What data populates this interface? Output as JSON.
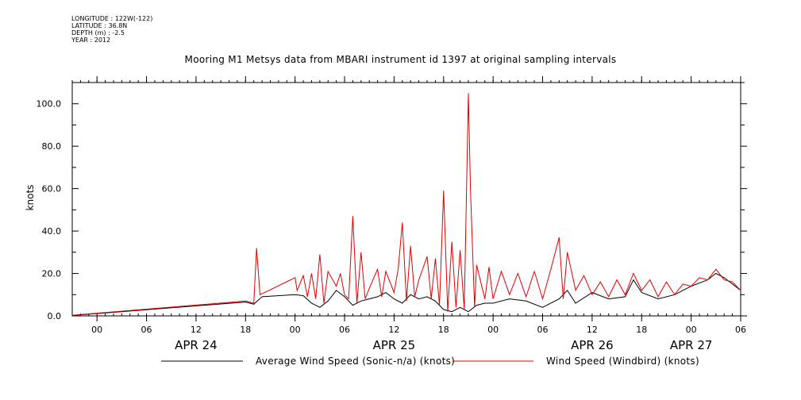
{
  "header": {
    "longitude": "LONGITUDE : 122W(-122)",
    "latitude": "LATITUDE : 36.8N",
    "depth": "DEPTH (m) : -2.5",
    "year": "YEAR : 2012"
  },
  "chart_data": {
    "type": "line",
    "title": "Mooring M1 Metsys data from MBARI instrument id 1397 at original sampling intervals",
    "ylabel": "knots",
    "ylim": [
      0,
      110
    ],
    "xlim": [
      "2012-04-23 21:00",
      "2012-04-27 06:00"
    ],
    "y_ticks": [
      0,
      20,
      40,
      60,
      80,
      100
    ],
    "y_tick_labels": [
      "0.0",
      "20.0",
      "40.0",
      "60.0",
      "80.0",
      "100.0"
    ],
    "x_ticks": [
      "2012-04-24 00:00",
      "2012-04-24 06:00",
      "2012-04-24 12:00",
      "2012-04-24 18:00",
      "2012-04-25 00:00",
      "2012-04-25 06:00",
      "2012-04-25 12:00",
      "2012-04-25 18:00",
      "2012-04-26 00:00",
      "2012-04-26 06:00",
      "2012-04-26 12:00",
      "2012-04-26 18:00",
      "2012-04-27 00:00",
      "2012-04-27 06:00"
    ],
    "x_tick_labels": [
      "00",
      "06",
      "12",
      "18",
      "00",
      "06",
      "12",
      "18",
      "00",
      "06",
      "12",
      "18",
      "00",
      "06"
    ],
    "day_labels": [
      {
        "date": "2012-04-24 12:00",
        "label": "APR 24"
      },
      {
        "date": "2012-04-25 12:00",
        "label": "APR 25"
      },
      {
        "date": "2012-04-26 12:00",
        "label": "APR 26"
      },
      {
        "date": "2012-04-27 00:00",
        "label": "APR 27"
      }
    ],
    "grid": false,
    "legend_position": "bottom",
    "series": [
      {
        "name": "Average Wind Speed (Sonic-n/a) (knots)",
        "color": "#000000",
        "points": [
          [
            "2012-04-23 21:00",
            0.2
          ],
          [
            "2012-04-24 18:00",
            6.5
          ],
          [
            "2012-04-24 19:00",
            5.5
          ],
          [
            "2012-04-24 20:00",
            9
          ],
          [
            "2012-04-25 00:00",
            10
          ],
          [
            "2012-04-25 01:00",
            9.5
          ],
          [
            "2012-04-25 02:00",
            6
          ],
          [
            "2012-04-25 03:00",
            4
          ],
          [
            "2012-04-25 04:00",
            7
          ],
          [
            "2012-04-25 05:00",
            12
          ],
          [
            "2012-04-25 06:00",
            9
          ],
          [
            "2012-04-25 07:00",
            5
          ],
          [
            "2012-04-25 08:00",
            7
          ],
          [
            "2012-04-25 09:00",
            8
          ],
          [
            "2012-04-25 10:00",
            9
          ],
          [
            "2012-04-25 11:00",
            11
          ],
          [
            "2012-04-25 12:00",
            8
          ],
          [
            "2012-04-25 13:00",
            6
          ],
          [
            "2012-04-25 14:00",
            10
          ],
          [
            "2012-04-25 15:00",
            8
          ],
          [
            "2012-04-25 16:00",
            9
          ],
          [
            "2012-04-25 17:00",
            7
          ],
          [
            "2012-04-25 18:00",
            3
          ],
          [
            "2012-04-25 19:00",
            2
          ],
          [
            "2012-04-25 20:00",
            4
          ],
          [
            "2012-04-25 21:00",
            2
          ],
          [
            "2012-04-25 22:00",
            5
          ],
          [
            "2012-04-25 23:00",
            6
          ],
          [
            "2012-04-26 00:00",
            6
          ],
          [
            "2012-04-26 02:00",
            8
          ],
          [
            "2012-04-26 04:00",
            7
          ],
          [
            "2012-04-26 06:00",
            4
          ],
          [
            "2012-04-26 08:00",
            8
          ],
          [
            "2012-04-26 09:00",
            12
          ],
          [
            "2012-04-26 10:00",
            6
          ],
          [
            "2012-04-26 12:00",
            11
          ],
          [
            "2012-04-26 14:00",
            8
          ],
          [
            "2012-04-26 16:00",
            9
          ],
          [
            "2012-04-26 17:00",
            17
          ],
          [
            "2012-04-26 18:00",
            11
          ],
          [
            "2012-04-26 20:00",
            8
          ],
          [
            "2012-04-26 22:00",
            10
          ],
          [
            "2012-04-27 00:00",
            14
          ],
          [
            "2012-04-27 02:00",
            17
          ],
          [
            "2012-04-27 03:00",
            20
          ],
          [
            "2012-04-27 04:00",
            18
          ],
          [
            "2012-04-27 05:00",
            15
          ],
          [
            "2012-04-27 06:00",
            12
          ]
        ]
      },
      {
        "name": "Wind Speed (Windbird) (knots)",
        "color": "#e00000",
        "points": [
          [
            "2012-04-23 21:00",
            0.3
          ],
          [
            "2012-04-24 18:00",
            7
          ],
          [
            "2012-04-24 19:00",
            6
          ],
          [
            "2012-04-24 19:20",
            32
          ],
          [
            "2012-04-24 19:45",
            10
          ],
          [
            "2012-04-25 00:00",
            18
          ],
          [
            "2012-04-25 00:15",
            12
          ],
          [
            "2012-04-25 01:00",
            19
          ],
          [
            "2012-04-25 01:30",
            9
          ],
          [
            "2012-04-25 02:00",
            20
          ],
          [
            "2012-04-25 02:30",
            8
          ],
          [
            "2012-04-25 03:00",
            29
          ],
          [
            "2012-04-25 03:30",
            6
          ],
          [
            "2012-04-25 04:00",
            21
          ],
          [
            "2012-04-25 05:00",
            14
          ],
          [
            "2012-04-25 05:30",
            20
          ],
          [
            "2012-04-25 06:00",
            10
          ],
          [
            "2012-04-25 06:30",
            8
          ],
          [
            "2012-04-25 07:00",
            47
          ],
          [
            "2012-04-25 07:30",
            6
          ],
          [
            "2012-04-25 08:00",
            30
          ],
          [
            "2012-04-25 08:30",
            8
          ],
          [
            "2012-04-25 09:00",
            13
          ],
          [
            "2012-04-25 10:00",
            22
          ],
          [
            "2012-04-25 10:30",
            9
          ],
          [
            "2012-04-25 11:00",
            21
          ],
          [
            "2012-04-25 12:00",
            11
          ],
          [
            "2012-04-25 12:30",
            22
          ],
          [
            "2012-04-25 13:00",
            44
          ],
          [
            "2012-04-25 13:30",
            7
          ],
          [
            "2012-04-25 14:00",
            33
          ],
          [
            "2012-04-25 14:30",
            9
          ],
          [
            "2012-04-25 15:00",
            17
          ],
          [
            "2012-04-25 16:00",
            28
          ],
          [
            "2012-04-25 16:30",
            8
          ],
          [
            "2012-04-25 17:00",
            27
          ],
          [
            "2012-04-25 17:30",
            5
          ],
          [
            "2012-04-25 18:00",
            59
          ],
          [
            "2012-04-25 18:30",
            2
          ],
          [
            "2012-04-25 19:00",
            35
          ],
          [
            "2012-04-25 19:30",
            4
          ],
          [
            "2012-04-25 20:00",
            31
          ],
          [
            "2012-04-25 20:30",
            3
          ],
          [
            "2012-04-25 21:00",
            105
          ],
          [
            "2012-04-25 21:15",
            60
          ],
          [
            "2012-04-25 21:45",
            4
          ],
          [
            "2012-04-25 22:00",
            24
          ],
          [
            "2012-04-25 23:00",
            8
          ],
          [
            "2012-04-25 23:30",
            23
          ],
          [
            "2012-04-26 00:00",
            8
          ],
          [
            "2012-04-26 01:00",
            21
          ],
          [
            "2012-04-26 02:00",
            10
          ],
          [
            "2012-04-26 03:00",
            20
          ],
          [
            "2012-04-26 04:00",
            9
          ],
          [
            "2012-04-26 05:00",
            21
          ],
          [
            "2012-04-26 06:00",
            8
          ],
          [
            "2012-04-26 07:00",
            22
          ],
          [
            "2012-04-26 08:00",
            37
          ],
          [
            "2012-04-26 08:30",
            8
          ],
          [
            "2012-04-26 09:00",
            30
          ],
          [
            "2012-04-26 10:00",
            12
          ],
          [
            "2012-04-26 11:00",
            19
          ],
          [
            "2012-04-26 12:00",
            10
          ],
          [
            "2012-04-26 13:00",
            16
          ],
          [
            "2012-04-26 14:00",
            9
          ],
          [
            "2012-04-26 15:00",
            17
          ],
          [
            "2012-04-26 16:00",
            10
          ],
          [
            "2012-04-26 17:00",
            20
          ],
          [
            "2012-04-26 18:00",
            12
          ],
          [
            "2012-04-26 19:00",
            17
          ],
          [
            "2012-04-26 20:00",
            9
          ],
          [
            "2012-04-26 21:00",
            16
          ],
          [
            "2012-04-26 22:00",
            10
          ],
          [
            "2012-04-26 23:00",
            15
          ],
          [
            "2012-04-27 00:00",
            14
          ],
          [
            "2012-04-27 01:00",
            18
          ],
          [
            "2012-04-27 02:00",
            17
          ],
          [
            "2012-04-27 03:00",
            22
          ],
          [
            "2012-04-27 04:00",
            17
          ],
          [
            "2012-04-27 05:00",
            16
          ],
          [
            "2012-04-27 06:00",
            12
          ]
        ]
      }
    ]
  }
}
